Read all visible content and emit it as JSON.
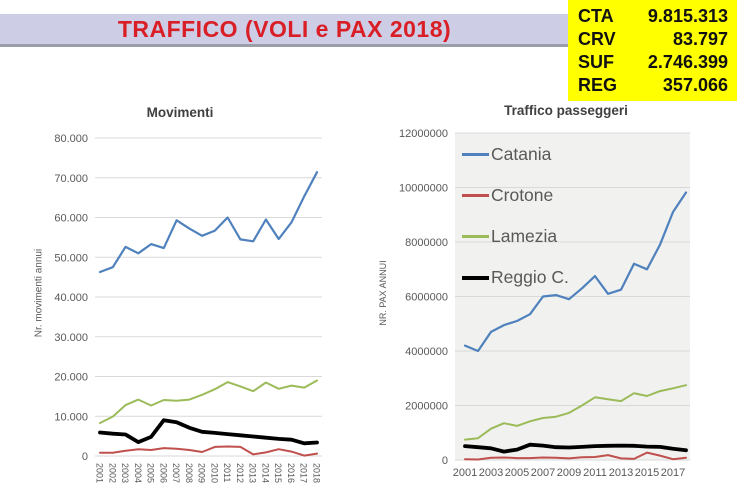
{
  "header": {
    "title": "TRAFFICO (VOLI e PAX 2018)",
    "bar_color": "#cdcde6",
    "text_color": "#d91e26"
  },
  "stats_box": {
    "background": "#ffff00",
    "rows": [
      {
        "code": "CTA",
        "value": "9.815.313"
      },
      {
        "code": "CRV",
        "value": "83.797"
      },
      {
        "code": "SUF",
        "value": "2.746.399"
      },
      {
        "code": "REG",
        "value": "357.066"
      }
    ]
  },
  "colors": {
    "catania": "#4F81BD",
    "crotone": "#C0504D",
    "lamezia": "#9BBB59",
    "reggio": "#000000",
    "gridline": "#D9D9D9",
    "axis_text": "#595959"
  },
  "chart_data": [
    {
      "id": "movimenti",
      "type": "line",
      "title": "Movimenti",
      "ylabel": "Nr. movimenti annui",
      "x": [
        2001,
        2002,
        2003,
        2004,
        2005,
        2006,
        2007,
        2008,
        2009,
        2010,
        2011,
        2012,
        2013,
        2014,
        2015,
        2016,
        2017,
        2018
      ],
      "x_tick_labels": [
        "2001",
        "2002",
        "2003",
        "2004",
        "2005",
        "2006",
        "2007",
        "2008",
        "2009",
        "2010",
        "2011",
        "2012",
        "2013",
        "2014",
        "2015",
        "2016",
        "2017",
        "2018"
      ],
      "x_label_rotation": 90,
      "ylim": [
        0,
        80000
      ],
      "yticks": [
        0,
        10000,
        20000,
        30000,
        40000,
        50000,
        60000,
        70000,
        80000
      ],
      "ytick_labels": [
        "0",
        "10.000",
        "20.000",
        "30.000",
        "40.000",
        "50.000",
        "60.000",
        "70.000",
        "80.000"
      ],
      "grid": true,
      "plot_background": "#FFFFFF",
      "legend": false,
      "series": [
        {
          "name": "Catania",
          "color": "#4F81BD",
          "line_width": 2.2,
          "values": [
            46300,
            47500,
            52600,
            51000,
            53300,
            52300,
            59300,
            57200,
            55400,
            56700,
            60000,
            54500,
            54000,
            59500,
            54600,
            58800,
            65300,
            71400
          ]
        },
        {
          "name": "Crotone",
          "color": "#C0504D",
          "line_width": 2,
          "values": [
            800,
            800,
            1300,
            1700,
            1500,
            2000,
            1800,
            1500,
            1000,
            2300,
            2400,
            2300,
            400,
            900,
            1700,
            1100,
            100,
            600
          ]
        },
        {
          "name": "Lamezia",
          "color": "#9BBB59",
          "line_width": 2,
          "values": [
            8300,
            9900,
            12800,
            14200,
            12700,
            14100,
            13900,
            14200,
            15400,
            16800,
            18600,
            17500,
            16300,
            18500,
            16900,
            17700,
            17200,
            19000
          ]
        },
        {
          "name": "Reggio C.",
          "color": "#000000",
          "line_width": 3.8,
          "values": [
            5900,
            5600,
            5400,
            3500,
            4800,
            9000,
            8500,
            7100,
            6100,
            5800,
            5500,
            5200,
            4900,
            4600,
            4300,
            4100,
            3200,
            3400
          ]
        }
      ]
    },
    {
      "id": "pax",
      "type": "line",
      "title": "Traffico passeggeri",
      "ylabel": "NR. PAX ANNUI",
      "x": [
        2001,
        2002,
        2003,
        2004,
        2005,
        2006,
        2007,
        2008,
        2009,
        2010,
        2011,
        2012,
        2013,
        2014,
        2015,
        2016,
        2017,
        2018
      ],
      "x_tick_labels": [
        "2001",
        "2003",
        "2005",
        "2007",
        "2009",
        "2011",
        "2013",
        "2015",
        "2017"
      ],
      "x_label_rotation": 0,
      "ylim": [
        0,
        12000000
      ],
      "yticks": [
        0,
        2000000,
        4000000,
        6000000,
        8000000,
        10000000,
        12000000
      ],
      "ytick_labels": [
        "0",
        "2000000",
        "4000000",
        "6000000",
        "8000000",
        "10000000",
        "12000000"
      ],
      "grid": true,
      "plot_background": "#F1F1EF",
      "legend": true,
      "legend_position": "upper-left-inside",
      "series": [
        {
          "name": "Catania",
          "color": "#4F81BD",
          "line_width": 2.2,
          "values": [
            4200000,
            4000000,
            4700000,
            4950000,
            5100000,
            5350000,
            6000000,
            6050000,
            5900000,
            6300000,
            6750000,
            6100000,
            6250000,
            7200000,
            7000000,
            7900000,
            9100000,
            9815313
          ]
        },
        {
          "name": "Crotone",
          "color": "#C0504D",
          "line_width": 2,
          "values": [
            30000,
            20000,
            80000,
            90000,
            70000,
            70000,
            90000,
            80000,
            60000,
            100000,
            110000,
            180000,
            60000,
            40000,
            270000,
            160000,
            30000,
            83797
          ]
        },
        {
          "name": "Lamezia",
          "color": "#9BBB59",
          "line_width": 2,
          "values": [
            750000,
            800000,
            1150000,
            1350000,
            1250000,
            1420000,
            1540000,
            1590000,
            1730000,
            2000000,
            2300000,
            2230000,
            2160000,
            2450000,
            2350000,
            2530000,
            2630000,
            2746399
          ]
        },
        {
          "name": "Reggio C.",
          "color": "#000000",
          "line_width": 3.8,
          "values": [
            510000,
            470000,
            430000,
            310000,
            380000,
            560000,
            530000,
            470000,
            460000,
            480000,
            510000,
            520000,
            530000,
            520000,
            490000,
            480000,
            410000,
            357066
          ]
        }
      ]
    }
  ]
}
